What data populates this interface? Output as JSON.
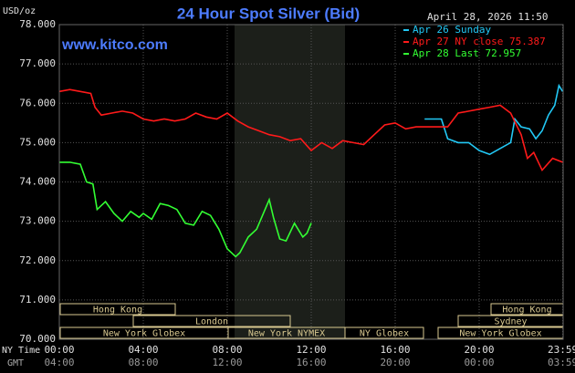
{
  "chart_data": {
    "type": "line",
    "title": "24 Hour Spot Silver (Bid)",
    "timestamp": "April 28, 2026 11:50",
    "source": "www.kitco.com",
    "y_label": "USD/oz",
    "x_row_labels": [
      "NY Time",
      "GMT"
    ],
    "xlim": [
      0,
      24
    ],
    "xticks": [
      {
        "value": 0,
        "label": "00:00"
      },
      {
        "value": 4,
        "label": "04:00"
      },
      {
        "value": 8,
        "label": "08:00"
      },
      {
        "value": 12,
        "label": "12:00"
      },
      {
        "value": 16,
        "label": "16:00"
      },
      {
        "value": 20,
        "label": "20:00"
      },
      {
        "value": 23.983,
        "label": "23:59"
      }
    ],
    "gmt_ticks": [
      {
        "value": 0,
        "label": "04:00"
      },
      {
        "value": 4,
        "label": "08:00"
      },
      {
        "value": 8,
        "label": "12:00"
      },
      {
        "value": 12,
        "label": "16:00"
      },
      {
        "value": 16,
        "label": "20:00"
      },
      {
        "value": 20,
        "label": "00:00"
      },
      {
        "value": 23.983,
        "label": "03:59"
      }
    ],
    "ylim": [
      70,
      78
    ],
    "yticks": [
      {
        "value": 70,
        "label": "70.000"
      },
      {
        "value": 71,
        "label": "71.000"
      },
      {
        "value": 72,
        "label": "72.000"
      },
      {
        "value": 73,
        "label": "73.000"
      },
      {
        "value": 74,
        "label": "74.000"
      },
      {
        "value": 75,
        "label": "75.000"
      },
      {
        "value": 76,
        "label": "76.000"
      },
      {
        "value": 77,
        "label": "77.000"
      },
      {
        "value": 78,
        "label": "78.000"
      }
    ],
    "grid": true,
    "sessions": [
      "Hong Kong",
      "London",
      "New York Globex",
      "New York NYMEX",
      "NY Globex",
      "Hong Kong",
      "Sydney",
      "New York Globex"
    ],
    "series": [
      {
        "name": "Apr 26 Sunday",
        "color": "#22c8f5",
        "x": [
          17.4,
          18.2,
          18.5,
          19,
          19.5,
          20,
          20.5,
          21,
          21.5,
          21.7,
          22,
          22.4,
          22.7,
          23,
          23.3,
          23.6,
          23.8,
          23.98
        ],
        "values": [
          75.6,
          75.6,
          75.1,
          75.0,
          75.0,
          74.8,
          74.7,
          74.85,
          75.0,
          75.6,
          75.4,
          75.35,
          75.1,
          75.3,
          75.7,
          75.95,
          76.45,
          76.3
        ]
      },
      {
        "name": "Apr 27 NY close 75.387",
        "color": "#ff1a1a",
        "x": [
          0,
          0.5,
          1,
          1.5,
          1.7,
          2,
          2.5,
          3,
          3.5,
          4,
          4.5,
          5,
          5.5,
          6,
          6.5,
          7,
          7.5,
          8,
          8.5,
          9,
          9.5,
          10,
          10.5,
          11,
          11.5,
          12,
          12.5,
          13,
          13.5,
          14,
          14.5,
          15,
          15.5,
          16,
          16.5,
          17,
          17.5,
          18,
          18.5,
          19,
          19.5,
          20,
          20.5,
          21,
          21.5,
          22,
          22.3,
          22.6,
          23,
          23.5,
          23.98
        ],
        "values": [
          76.3,
          76.35,
          76.3,
          76.25,
          75.9,
          75.7,
          75.75,
          75.8,
          75.75,
          75.6,
          75.55,
          75.6,
          75.55,
          75.6,
          75.75,
          75.65,
          75.6,
          75.75,
          75.55,
          75.4,
          75.3,
          75.2,
          75.15,
          75.05,
          75.1,
          74.8,
          75.0,
          74.85,
          75.05,
          75.0,
          74.95,
          75.2,
          75.45,
          75.5,
          75.35,
          75.4,
          75.4,
          75.4,
          75.4,
          75.75,
          75.8,
          75.85,
          75.9,
          75.95,
          75.75,
          75.2,
          74.6,
          74.75,
          74.3,
          74.6,
          74.5
        ]
      },
      {
        "name": "Apr 28 Last 72.957",
        "color": "#33ff33",
        "x": [
          0,
          0.5,
          1,
          1.3,
          1.6,
          1.8,
          2.2,
          2.6,
          3,
          3.4,
          3.8,
          4,
          4.4,
          4.8,
          5.2,
          5.6,
          6,
          6.4,
          6.8,
          7.2,
          7.6,
          8,
          8.4,
          8.6,
          9,
          9.4,
          9.8,
          10,
          10.2,
          10.5,
          10.8,
          11.2,
          11.6,
          11.8,
          12
        ],
        "values": [
          74.5,
          74.5,
          74.45,
          74.0,
          73.95,
          73.3,
          73.5,
          73.2,
          73.0,
          73.25,
          73.1,
          73.2,
          73.05,
          73.45,
          73.4,
          73.3,
          72.95,
          72.9,
          73.25,
          73.15,
          72.8,
          72.3,
          72.1,
          72.2,
          72.6,
          72.8,
          73.3,
          73.55,
          73.1,
          72.55,
          72.5,
          72.95,
          72.6,
          72.7,
          72.957
        ]
      }
    ]
  }
}
